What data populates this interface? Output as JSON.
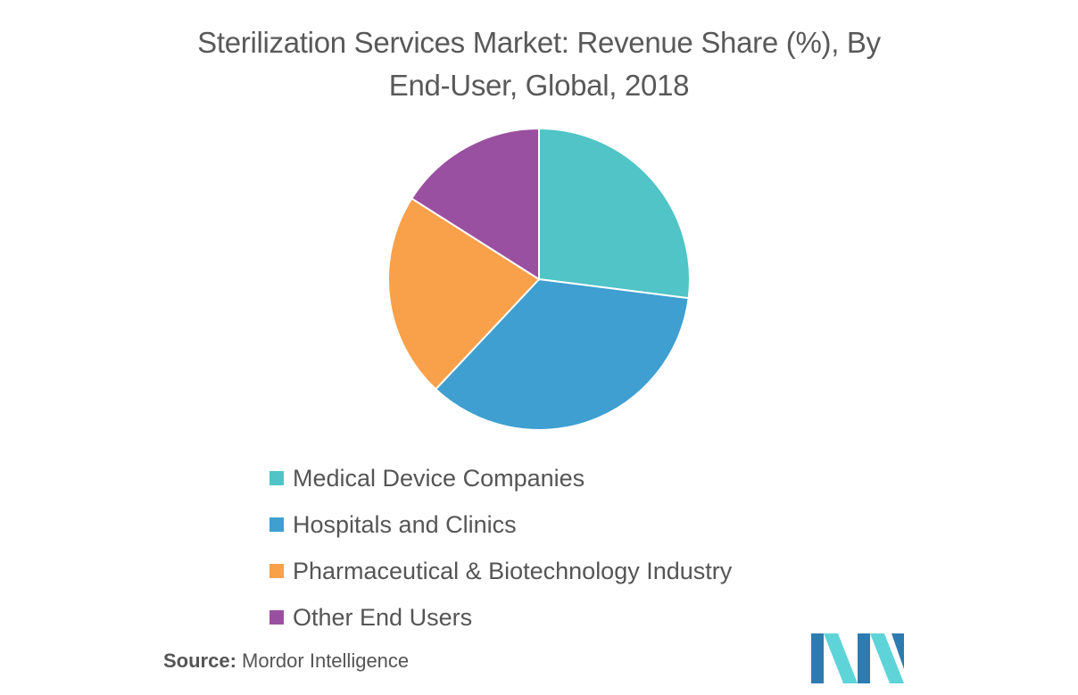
{
  "chart_data": {
    "type": "pie",
    "title": "Sterilization Services Market: Revenue Share (%), By End-User, Global, 2018",
    "slices": [
      {
        "label": "Medical Device Companies",
        "value": 27,
        "color": "#50C4C6"
      },
      {
        "label": "Hospitals and Clinics",
        "value": 35,
        "color": "#3E9FD0"
      },
      {
        "label": "Pharmaceutical & Biotechnology Industry",
        "value": 22,
        "color": "#F9A04A"
      },
      {
        "label": "Other End Users",
        "value": 16,
        "color": "#9A50A0"
      }
    ],
    "legend_position": "bottom"
  },
  "source": {
    "label": "Source:",
    "text": "Mordor Intelligence"
  },
  "logo": {
    "icon": "mordor-intelligence-logo",
    "colors": [
      "#2E7BB0",
      "#5ED4D9"
    ]
  }
}
